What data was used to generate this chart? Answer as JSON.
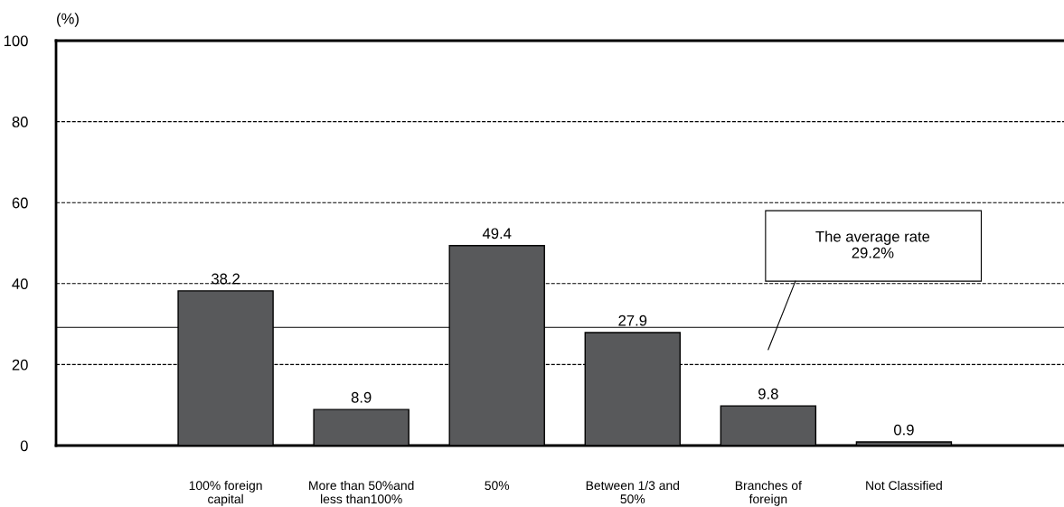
{
  "chart_data": {
    "type": "bar",
    "ylabel": "(%)",
    "categories": [
      "100% foreign\ncapital",
      "More than 50%and\nless than100%",
      "50%",
      "Between 1/3 and\n50%",
      "Branches of\nforeign",
      "Not Classified"
    ],
    "values": [
      38.2,
      8.9,
      49.4,
      27.9,
      9.8,
      0.9
    ],
    "color": "#58595b",
    "ylim": [
      0,
      100
    ],
    "yticks": [
      0,
      20,
      40,
      60,
      80,
      100
    ],
    "grid": "y",
    "line_style": "dashed",
    "data_labels": true,
    "ref_lines": [
      {
        "axis": "y",
        "value": 29.2,
        "label": "The average rate\n29.2%",
        "color": "#000000"
      }
    ]
  }
}
